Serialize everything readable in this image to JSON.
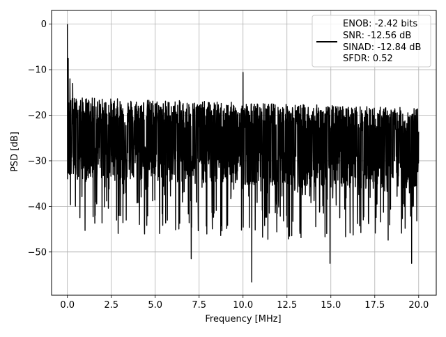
{
  "chart_data": {
    "type": "line",
    "title": "",
    "xlabel": "Frequency [MHz]",
    "ylabel": "PSD [dB]",
    "xlim": [
      -0.9,
      21.0
    ],
    "ylim": [
      -59.5,
      3.0
    ],
    "xticks": [
      0.0,
      2.5,
      5.0,
      7.5,
      10.0,
      12.5,
      15.0,
      17.5,
      20.0
    ],
    "xtick_labels": [
      "0.0",
      "2.5",
      "5.0",
      "7.5",
      "10.0",
      "12.5",
      "15.0",
      "17.5",
      "20.0"
    ],
    "yticks": [
      0,
      -10,
      -20,
      -30,
      -40,
      -50
    ],
    "ytick_labels": [
      "0",
      "−10",
      "−20",
      "−30",
      "−40",
      "−50"
    ],
    "grid": true,
    "legend_position": "top-right",
    "legend_lines": [
      "ENOB: -2.42 bits",
      "SNR: -12.56 dB",
      "SINAD: -12.84 dB",
      "SFDR: 0.52"
    ],
    "series": [
      {
        "color": "#000000",
        "description_points": {
          "x_range": [
            0.0,
            20.0
          ],
          "n_points": 2049,
          "baseline_median_db": -27.0,
          "peaks": [
            {
              "x": 0.0,
              "y": 0.0
            },
            {
              "x": 0.02,
              "y": -9.3
            },
            {
              "x": 0.05,
              "y": -7.5
            },
            {
              "x": 0.15,
              "y": -12.0
            },
            {
              "x": 0.3,
              "y": -13.0
            },
            {
              "x": 10.0,
              "y": -10.6
            },
            {
              "x": 10.5,
              "y": -56.6
            },
            {
              "x": 7.05,
              "y": -51.5
            },
            {
              "x": 14.95,
              "y": -52.5
            },
            {
              "x": 19.6,
              "y": -52.5
            }
          ]
        }
      }
    ]
  }
}
